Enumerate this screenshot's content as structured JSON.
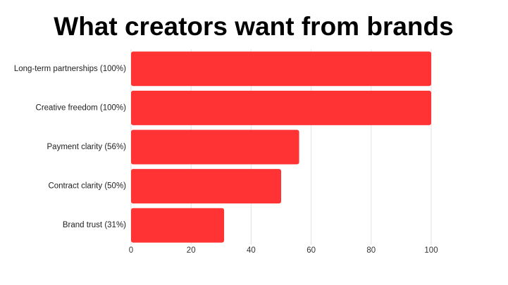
{
  "chart_data": {
    "type": "bar",
    "orientation": "horizontal",
    "title": "What creators want from brands",
    "categories": [
      "Long-term partnerships (100%)",
      "Creative freedom (100%)",
      "Payment clarity (56%)",
      "Contract clarity (50%)",
      "Brand trust (31%)"
    ],
    "values": [
      100,
      100,
      56,
      50,
      31
    ],
    "color": "#ff3333",
    "xlim": [
      0,
      100
    ],
    "xticks": [
      0,
      20,
      40,
      60,
      80,
      100
    ],
    "grid": true
  }
}
